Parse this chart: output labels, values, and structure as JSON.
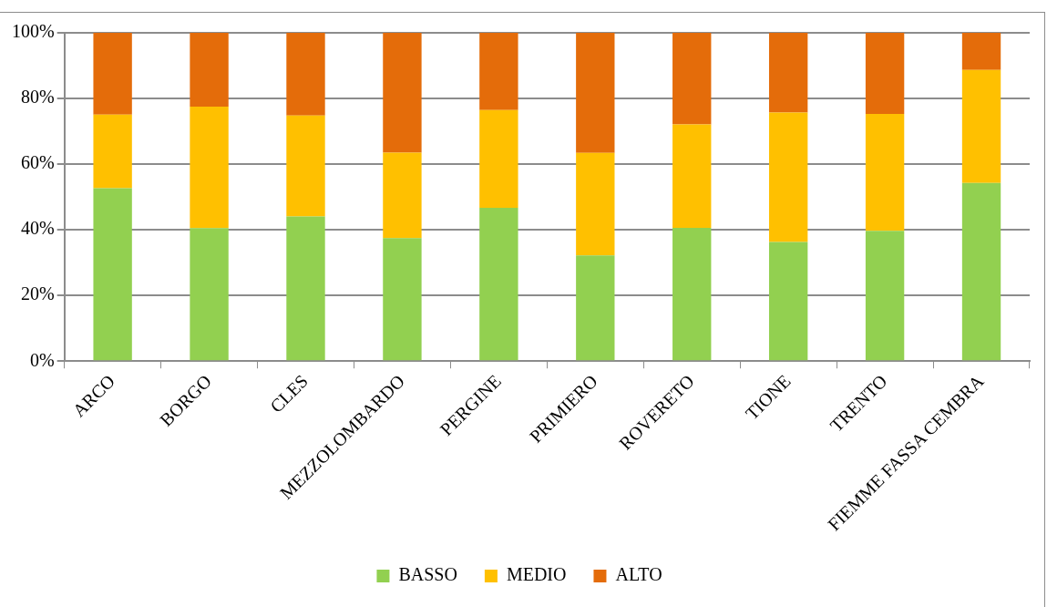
{
  "chart_data": {
    "type": "bar",
    "stacked": true,
    "categories": [
      "ARCO",
      "BORGO",
      "CLES",
      "MEZZOLOMBARDO",
      "PERGINE",
      "PRIMIERO",
      "ROVERETO",
      "TIONE",
      "TRENTO",
      "FIEMME FASSA CEMBRA"
    ],
    "series": [
      {
        "name": "BASSO",
        "color": "#92d050",
        "values": [
          52.7,
          40.5,
          44.1,
          37.5,
          46.7,
          32.2,
          40.6,
          36.3,
          39.7,
          54.3
        ]
      },
      {
        "name": "MEDIO",
        "color": "#ffc000",
        "values": [
          22.4,
          37.0,
          30.7,
          26.0,
          29.8,
          31.2,
          31.5,
          39.4,
          35.6,
          34.4
        ]
      },
      {
        "name": "ALTO",
        "color": "#e46c0a",
        "values": [
          24.9,
          22.5,
          25.2,
          36.5,
          23.5,
          36.6,
          27.9,
          24.3,
          24.7,
          11.3
        ]
      }
    ],
    "ylim": [
      0,
      100
    ],
    "yticks": [
      {
        "value": 0,
        "label": "0%"
      },
      {
        "value": 20,
        "label": "20%"
      },
      {
        "value": 40,
        "label": "40%"
      },
      {
        "value": 60,
        "label": "60%"
      },
      {
        "value": 80,
        "label": "80%"
      },
      {
        "value": 100,
        "label": "100%"
      }
    ],
    "grid": "y",
    "legend": "bottom"
  }
}
